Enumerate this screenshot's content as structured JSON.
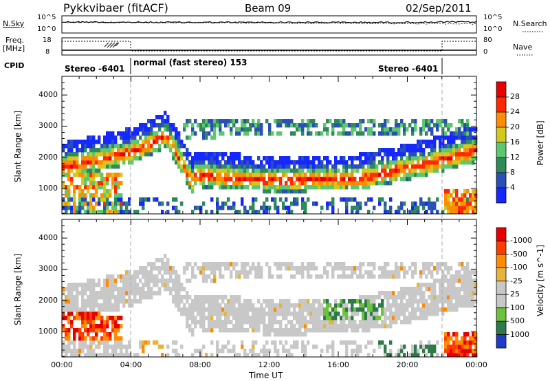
{
  "header": {
    "station": "Pykkvibaer (fitACF)",
    "beam": "Beam 09",
    "date": "02/Sep/2011"
  },
  "noise_panel": {
    "left_label": "N.Sky",
    "left_ticks": [
      "10^5",
      "10^0"
    ],
    "right_ticks": [
      "10^5",
      "10^0"
    ],
    "right_label": "N.Search"
  },
  "freq_panel": {
    "left_label_1": "Freq.",
    "left_label_2": "[MHz]",
    "left_ticks": [
      "18",
      "8"
    ],
    "right_ticks": [
      "80",
      "0"
    ],
    "right_label": "Nave"
  },
  "cpid": {
    "label": "CPID",
    "segments": [
      {
        "label": "Stereo -6401",
        "start_h": 0,
        "end_h": 4
      },
      {
        "label": "normal (fast stereo) 153",
        "start_h": 4,
        "end_h": 22
      },
      {
        "label": "Stereo -6401",
        "start_h": 22,
        "end_h": 24
      }
    ]
  },
  "chart_data": [
    {
      "type": "heatmap",
      "parameter": "Power",
      "ylabel": "Slant Range [km]",
      "yticks": [
        1000,
        2000,
        3000,
        4000
      ],
      "ylim": [
        180,
        4600
      ],
      "xlim": [
        0,
        24
      ],
      "colorbar": {
        "label": "Power [dB]",
        "ticks": [
          "4",
          "8",
          "12",
          "16",
          "20",
          "24",
          "28"
        ],
        "colors": [
          "#1428ff",
          "#2a4fb8",
          "#2e8a5a",
          "#5cc86e",
          "#d2c81e",
          "#ff8c00",
          "#ff2800",
          "#e80000"
        ]
      },
      "features": [
        {
          "name": "main band",
          "from_h": 0,
          "to_h": 24,
          "range_km": [
            900,
            2800
          ]
        },
        {
          "name": "far range scatter",
          "from_h": 7,
          "to_h": 24,
          "range_km": [
            2100,
            3200
          ]
        }
      ]
    },
    {
      "type": "heatmap",
      "parameter": "Velocity",
      "ylabel": "Slant Range [km]",
      "yticks": [
        1000,
        2000,
        3000,
        4000
      ],
      "ylim": [
        180,
        4600
      ],
      "xlim": [
        0,
        24
      ],
      "colorbar": {
        "label": "Velocity [m s^-1]",
        "ticks": [
          "1000",
          "500",
          "100",
          "25",
          "-25",
          "-100",
          "-500",
          "-1000"
        ],
        "colors": [
          "#1e3cc8",
          "#2e7a4a",
          "#6cc23a",
          "#c8c8c8",
          "#c8c8c8",
          "#e6b43c",
          "#ff8c00",
          "#ff3c00",
          "#e60000"
        ]
      },
      "features": [
        {
          "name": "ground scatter",
          "color": "grey"
        },
        {
          "name": "negative velocities",
          "from_h": 0,
          "to_h": 4,
          "range_km": [
            800,
            1600
          ]
        },
        {
          "name": "positive velocities",
          "from_h": 15,
          "to_h": 18,
          "range_km": [
            1300,
            2000
          ]
        }
      ]
    }
  ],
  "xaxis": {
    "ticks": [
      "00:00",
      "04:00",
      "08:00",
      "12:00",
      "16:00",
      "20:00",
      "00:00"
    ],
    "label": "Time UT"
  }
}
